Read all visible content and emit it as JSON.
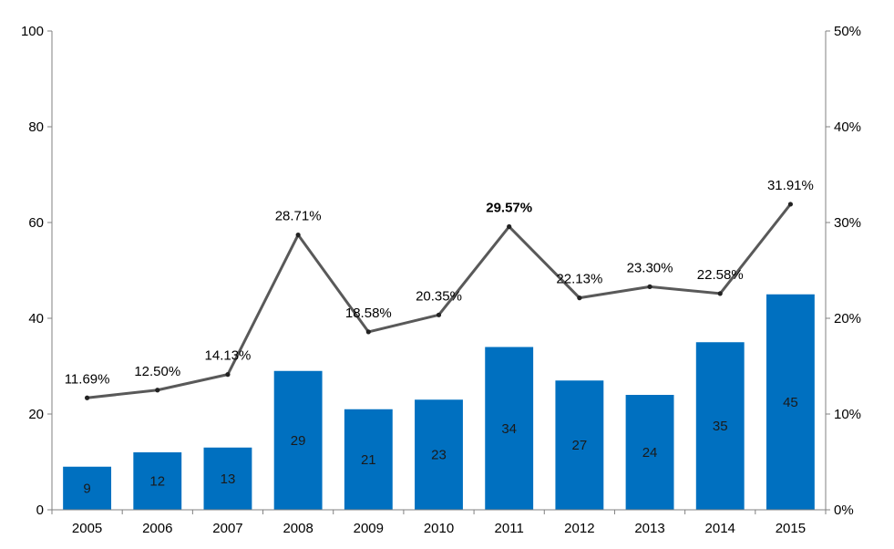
{
  "chart_data": {
    "type": "bar",
    "categories": [
      "2005",
      "2006",
      "2007",
      "2008",
      "2009",
      "2010",
      "2011",
      "2012",
      "2013",
      "2014",
      "2015"
    ],
    "series": [
      {
        "type": "bar",
        "axis": "left",
        "values": [
          9,
          12,
          13,
          29,
          21,
          23,
          34,
          27,
          24,
          35,
          45
        ],
        "labels": [
          "9",
          "12",
          "13",
          "29",
          "21",
          "23",
          "34",
          "27",
          "24",
          "35",
          "45"
        ]
      },
      {
        "type": "line",
        "axis": "right",
        "values": [
          11.69,
          12.5,
          14.13,
          28.71,
          18.58,
          20.35,
          29.57,
          22.13,
          23.3,
          22.58,
          31.91
        ],
        "labels": [
          "11.69%",
          "12.50%",
          "14.13%",
          "28.71%",
          "18.58%",
          "20.35%",
          "29.57%",
          "22.13%",
          "23.30%",
          "22.58%",
          "31.91%"
        ],
        "bold_index": 6
      }
    ],
    "y_left": {
      "ylim": [
        0,
        100
      ],
      "ticks": [
        0,
        20,
        40,
        60,
        80,
        100
      ],
      "tick_labels": [
        "0",
        "20",
        "40",
        "60",
        "80",
        "100"
      ]
    },
    "y_right": {
      "ylim": [
        0,
        50
      ],
      "ticks": [
        0,
        10,
        20,
        30,
        40,
        50
      ],
      "tick_labels": [
        "0%",
        "10%",
        "20%",
        "30%",
        "40%",
        "50%"
      ]
    },
    "title": "",
    "xlabel": "",
    "ylabel": "",
    "grid": false,
    "legend": "none",
    "colors": {
      "bar": "#0070c0",
      "line": "#595959",
      "axis": "#808080"
    }
  }
}
